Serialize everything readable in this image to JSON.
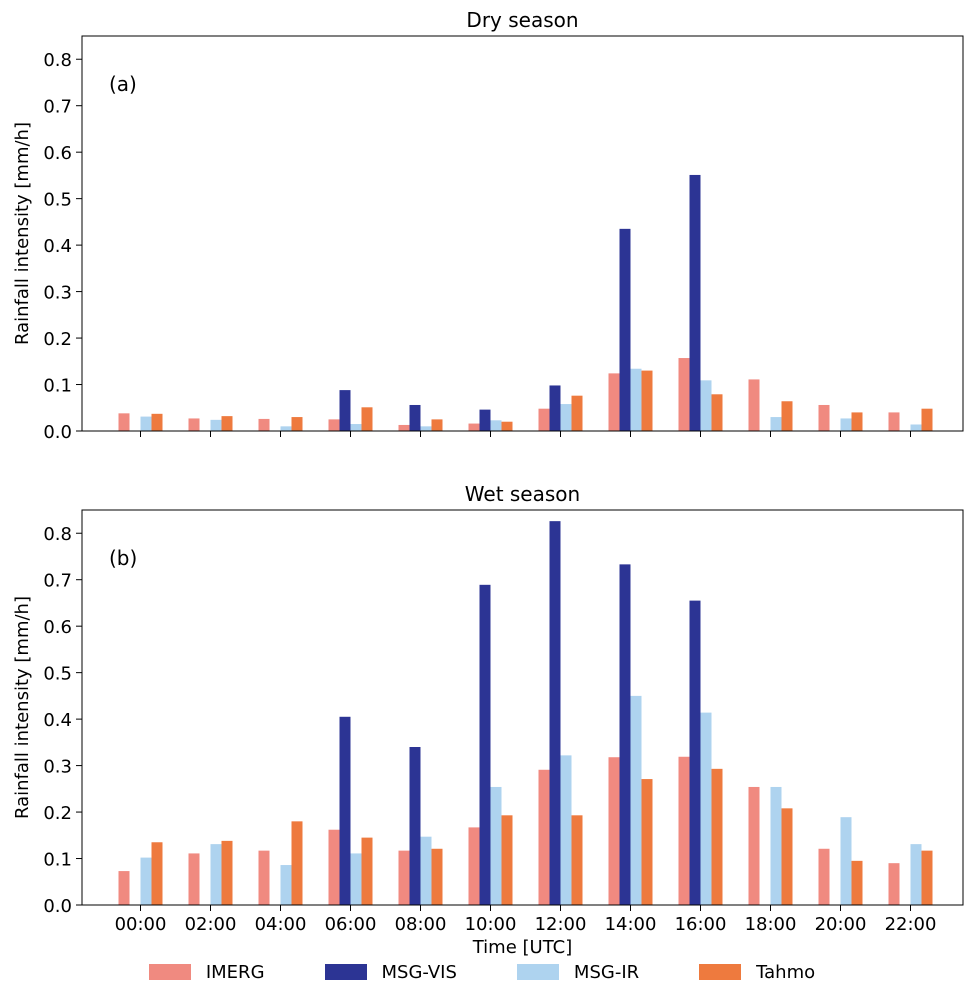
{
  "chart_data": [
    {
      "type": "bar",
      "title": "Dry season",
      "panel_label": "(a)",
      "xlabel": "",
      "ylabel": "Rainfall intensity [mm/h]",
      "ylim": [
        0,
        0.85
      ],
      "yticks": [
        "0.0",
        "0.1",
        "0.2",
        "0.3",
        "0.4",
        "0.5",
        "0.6",
        "0.7",
        "0.8"
      ],
      "show_x_ticklabels": false,
      "categories": [
        "00:00",
        "02:00",
        "04:00",
        "06:00",
        "08:00",
        "10:00",
        "12:00",
        "14:00",
        "16:00",
        "18:00",
        "20:00",
        "22:00"
      ],
      "series": [
        {
          "name": "IMERG",
          "values": [
            0.038,
            0.027,
            0.026,
            0.025,
            0.013,
            0.016,
            0.048,
            0.124,
            0.157,
            0.111,
            0.056,
            0.04
          ]
        },
        {
          "name": "MSG-VIS",
          "values": [
            0,
            0,
            0,
            0.088,
            0.056,
            0.046,
            0.098,
            0.435,
            0.551,
            0,
            0,
            0
          ]
        },
        {
          "name": "MSG-IR",
          "values": [
            0.031,
            0.024,
            0.01,
            0.015,
            0.01,
            0.023,
            0.058,
            0.134,
            0.109,
            0.03,
            0.027,
            0.014
          ]
        },
        {
          "name": "Tahmo",
          "values": [
            0.037,
            0.032,
            0.03,
            0.051,
            0.025,
            0.02,
            0.076,
            0.13,
            0.079,
            0.064,
            0.04,
            0.048
          ]
        }
      ]
    },
    {
      "type": "bar",
      "title": "Wet season",
      "panel_label": "(b)",
      "xlabel": "Time [UTC]",
      "ylabel": "Rainfall intensity [mm/h]",
      "ylim": [
        0,
        0.85
      ],
      "yticks": [
        "0.0",
        "0.1",
        "0.2",
        "0.3",
        "0.4",
        "0.5",
        "0.6",
        "0.7",
        "0.8"
      ],
      "show_x_ticklabels": true,
      "categories": [
        "00:00",
        "02:00",
        "04:00",
        "06:00",
        "08:00",
        "10:00",
        "12:00",
        "14:00",
        "16:00",
        "18:00",
        "20:00",
        "22:00"
      ],
      "series": [
        {
          "name": "IMERG",
          "values": [
            0.073,
            0.111,
            0.117,
            0.162,
            0.117,
            0.167,
            0.291,
            0.318,
            0.319,
            0.254,
            0.121,
            0.09
          ]
        },
        {
          "name": "MSG-VIS",
          "values": [
            0,
            0,
            0,
            0.405,
            0.34,
            0.689,
            0.826,
            0.733,
            0.655,
            0,
            0,
            0
          ]
        },
        {
          "name": "MSG-IR",
          "values": [
            0.102,
            0.131,
            0.086,
            0.111,
            0.147,
            0.254,
            0.322,
            0.45,
            0.414,
            0.254,
            0.189,
            0.131
          ]
        },
        {
          "name": "Tahmo",
          "values": [
            0.135,
            0.138,
            0.18,
            0.145,
            0.121,
            0.193,
            0.193,
            0.271,
            0.293,
            0.208,
            0.095,
            0.117
          ]
        }
      ]
    }
  ],
  "colors": {
    "IMERG": "#f08a80",
    "MSG-VIS": "#2c3494",
    "MSG-IR": "#aed3ef",
    "Tahmo": "#ee7a3e"
  },
  "legend": [
    {
      "label": "IMERG",
      "color": "#f08a80"
    },
    {
      "label": "MSG-VIS",
      "color": "#2c3494"
    },
    {
      "label": "MSG-IR",
      "color": "#aed3ef"
    },
    {
      "label": "Tahmo",
      "color": "#ee7a3e"
    }
  ]
}
